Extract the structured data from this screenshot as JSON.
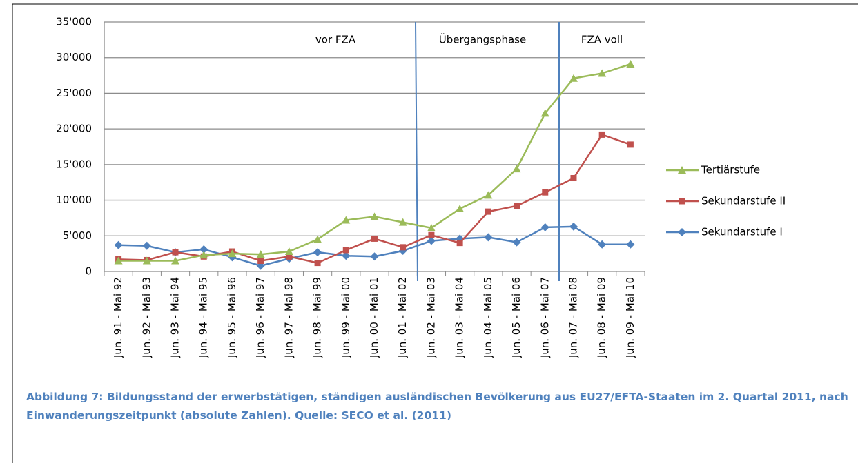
{
  "chart_data": {
    "type": "line",
    "categories": [
      "Jun. 91 - Mai 92",
      "Jun. 92 - Mai 93",
      "Jun. 93 - Mai 94",
      "Jun. 94 - Mai 95",
      "Jun. 95 - Mai 96",
      "Jun. 96 - Mai 97",
      "Jun. 97 - Mai 98",
      "Jun. 98 - Mai 99",
      "Jun. 99 - Mai 00",
      "Jun. 00 - Mai 01",
      "Jun. 01 - Mai 02",
      "Jun. 02 - Mai 03",
      "Jun. 03 - Mai 04",
      "Jun. 04 - Mai 05",
      "Jun. 05 - Mai 06",
      "Jun. 06 - Mai 07",
      "Jun. 07 - Mai 08",
      "Jun. 08 - Mai 09",
      "Jun. 09 - Mai 10"
    ],
    "series": [
      {
        "name": "Tertiärstufe",
        "color": "#9bbb59",
        "marker": "triangle",
        "values": [
          1500,
          1500,
          1500,
          2300,
          2500,
          2400,
          2800,
          4500,
          7200,
          7700,
          6900,
          6100,
          8800,
          10700,
          14400,
          22200,
          27100,
          27800,
          29100
        ]
      },
      {
        "name": "Sekundarstufe II",
        "color": "#c0504d",
        "marker": "square",
        "values": [
          1700,
          1600,
          2700,
          2100,
          2800,
          1500,
          2100,
          1200,
          3000,
          4600,
          3400,
          5100,
          4000,
          8400,
          9200,
          11100,
          13100,
          19200,
          17800
        ]
      },
      {
        "name": "Sekundarstufe I",
        "color": "#4f81bd",
        "marker": "diamond",
        "values": [
          3700,
          3600,
          2700,
          3100,
          2000,
          800,
          1800,
          2700,
          2200,
          2100,
          2900,
          4300,
          4600,
          4800,
          4100,
          6200,
          6300,
          3800,
          3800
        ]
      }
    ],
    "ylim": [
      0,
      35000
    ],
    "yticks": [
      0,
      {
        "value": 5000,
        "label": "5'000"
      },
      {
        "value": 10000,
        "label": "10'000"
      },
      {
        "value": 15000,
        "label": "15'000"
      },
      {
        "value": 20000,
        "label": "20'000"
      },
      {
        "value": 25000,
        "label": "25'000"
      },
      {
        "value": 30000,
        "label": "30'000"
      },
      {
        "value": 35000,
        "label": "35'000"
      }
    ],
    "grid": true,
    "legend": "right",
    "phases": [
      "vor FZA",
      "Übergangsphase",
      "FZA voll"
    ],
    "caption": "Abbildung 7: Bildungsstand der erwerbstätigen, ständigen ausländischen Bevölkerung aus EU27/EFTA-Staaten im 2. Quartal 2011, nach Einwanderungszeitpunkt (absolute Zahlen). Quelle: SECO et al. (2011)"
  }
}
